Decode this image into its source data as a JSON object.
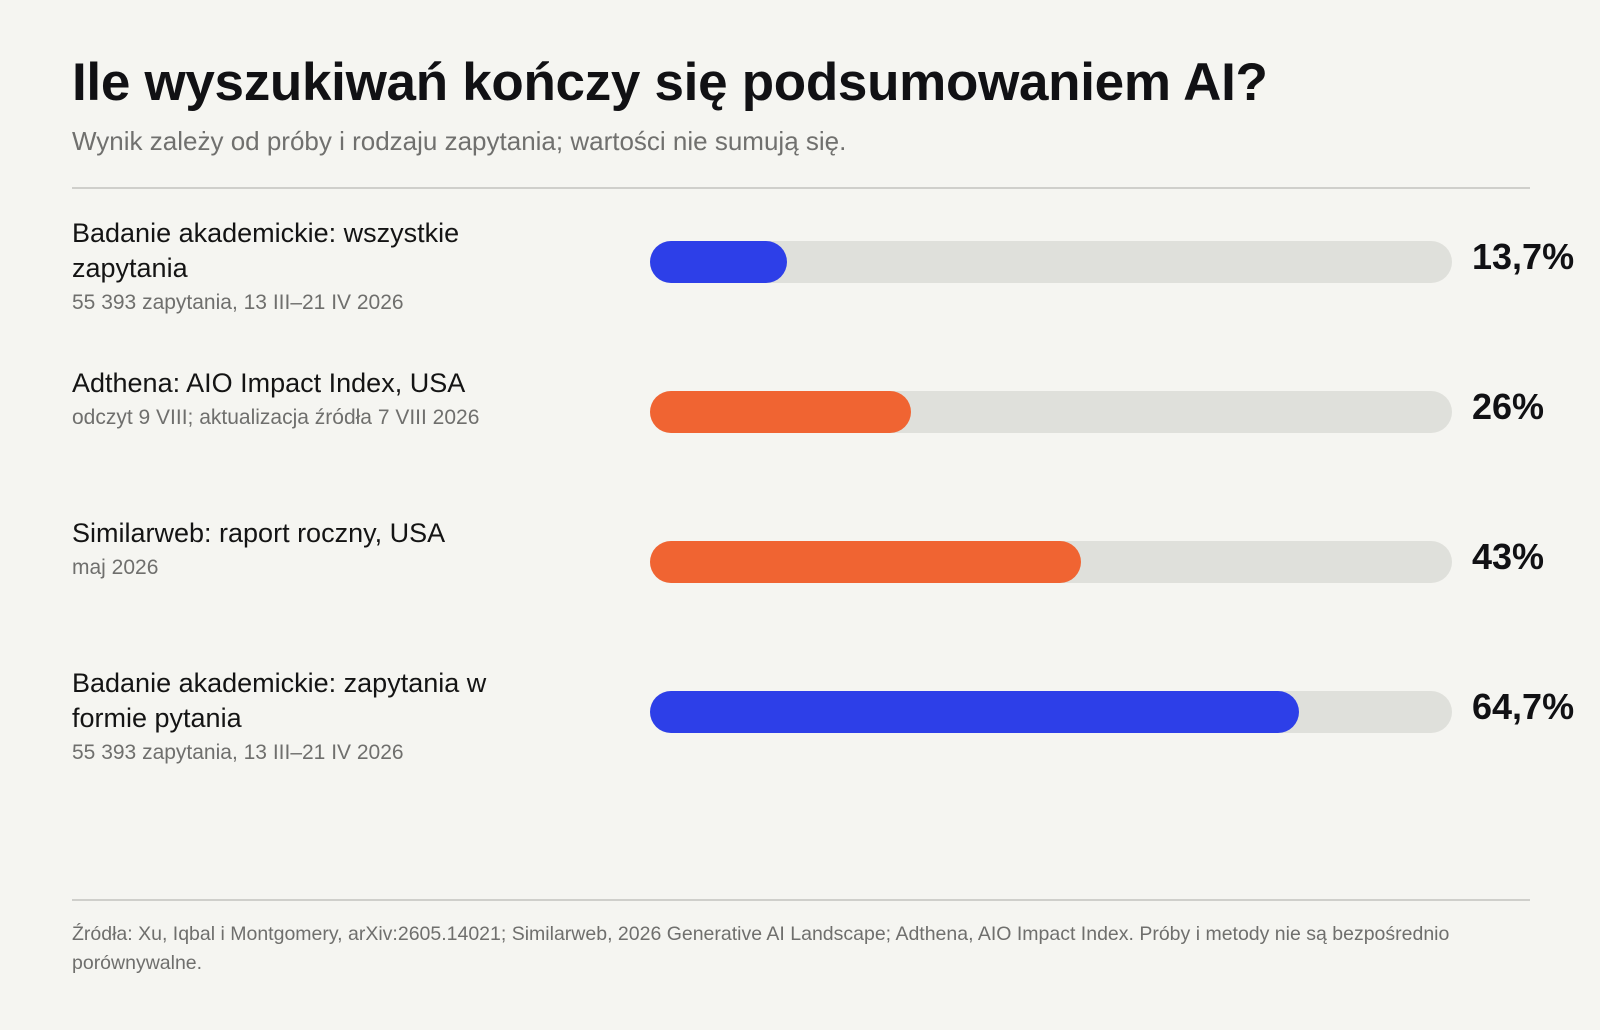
{
  "header": {
    "title": "Ile wyszukiwań kończy się podsumowaniem AI?",
    "subtitle": "Wynik zależy od próby i rodzaju zapytania; wartości nie sumują się."
  },
  "colors": {
    "blue": "#2d3fe8",
    "orange": "#f06432",
    "track": "#dfe0db"
  },
  "chart_data": {
    "type": "bar",
    "orientation": "horizontal",
    "xlim": [
      0,
      80
    ],
    "categories": [
      "Badanie akademickie: wszystkie zapytania",
      "Adthena: AIO Impact Index, USA",
      "Similarweb: raport roczny, USA",
      "Badanie akademickie: zapytania w formie pytania"
    ],
    "notes": [
      "55 393 zapytania, 13 III–21 IV 2026",
      "odczyt 9 VIII; aktualizacja źródła 7 VIII 2026",
      "maj 2026",
      "55 393 zapytania, 13 III–21 IV 2026"
    ],
    "values": [
      13.7,
      26,
      43,
      64.7
    ],
    "value_labels": [
      "13,7%",
      "26%",
      "43%",
      "64,7%"
    ],
    "bar_colors": [
      "#2d3fe8",
      "#f06432",
      "#f06432",
      "#2d3fe8"
    ]
  },
  "footer": {
    "sources": "Źródła: Xu, Iqbal i Montgomery, arXiv:2605.14021; Similarweb, 2026 Generative AI Landscape; Adthena, AIO Impact Index. Próby i metody nie są bezpośrednio porównywalne."
  }
}
